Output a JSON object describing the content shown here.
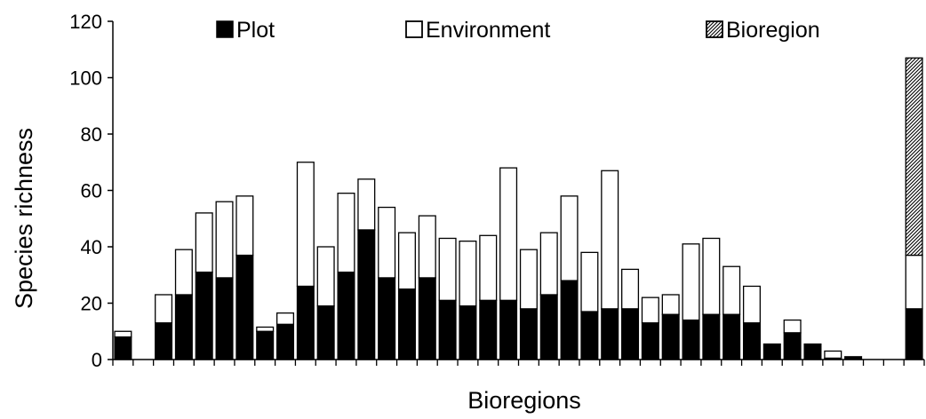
{
  "chart_data": {
    "type": "bar",
    "stacked": true,
    "title": "",
    "xlabel": "Bioregions",
    "ylabel": "Species richness",
    "ylim": [
      0,
      120
    ],
    "yticks": [
      0,
      20,
      40,
      60,
      80,
      100,
      120
    ],
    "grid": false,
    "legend_position": "top",
    "legend": [
      {
        "name": "Plot",
        "fill": "solid"
      },
      {
        "name": "Environment",
        "fill": "white"
      },
      {
        "name": "Bioregion",
        "fill": "hatched"
      }
    ],
    "colors": {
      "plot": "#000000",
      "environment": "#ffffff",
      "bioregion_hatch": "#000000",
      "axis": "#000000"
    },
    "bars": [
      {
        "plot": 8,
        "environment": 2,
        "bioregion": 0
      },
      {
        "plot": 0,
        "environment": 0,
        "bioregion": 0
      },
      {
        "plot": 13,
        "environment": 10,
        "bioregion": 0
      },
      {
        "plot": 23,
        "environment": 16,
        "bioregion": 0
      },
      {
        "plot": 31,
        "environment": 21,
        "bioregion": 0
      },
      {
        "plot": 29,
        "environment": 27,
        "bioregion": 0
      },
      {
        "plot": 37,
        "environment": 21,
        "bioregion": 0
      },
      {
        "plot": 10,
        "environment": 1.5,
        "bioregion": 0
      },
      {
        "plot": 12.5,
        "environment": 4,
        "bioregion": 0
      },
      {
        "plot": 26,
        "environment": 44,
        "bioregion": 0
      },
      {
        "plot": 19,
        "environment": 21,
        "bioregion": 0
      },
      {
        "plot": 31,
        "environment": 28,
        "bioregion": 0
      },
      {
        "plot": 46,
        "environment": 18,
        "bioregion": 0
      },
      {
        "plot": 29,
        "environment": 25,
        "bioregion": 0
      },
      {
        "plot": 25,
        "environment": 20,
        "bioregion": 0
      },
      {
        "plot": 29,
        "environment": 22,
        "bioregion": 0
      },
      {
        "plot": 21,
        "environment": 22,
        "bioregion": 0
      },
      {
        "plot": 19,
        "environment": 23,
        "bioregion": 0
      },
      {
        "plot": 21,
        "environment": 23,
        "bioregion": 0
      },
      {
        "plot": 21,
        "environment": 47,
        "bioregion": 0
      },
      {
        "plot": 18,
        "environment": 21,
        "bioregion": 0
      },
      {
        "plot": 23,
        "environment": 22,
        "bioregion": 0
      },
      {
        "plot": 28,
        "environment": 30,
        "bioregion": 0
      },
      {
        "plot": 17,
        "environment": 21,
        "bioregion": 0
      },
      {
        "plot": 18,
        "environment": 49,
        "bioregion": 0
      },
      {
        "plot": 18,
        "environment": 14,
        "bioregion": 0
      },
      {
        "plot": 13,
        "environment": 9,
        "bioregion": 0
      },
      {
        "plot": 16,
        "environment": 7,
        "bioregion": 0
      },
      {
        "plot": 14,
        "environment": 27,
        "bioregion": 0
      },
      {
        "plot": 16,
        "environment": 27,
        "bioregion": 0
      },
      {
        "plot": 16,
        "environment": 17,
        "bioregion": 0
      },
      {
        "plot": 13,
        "environment": 13,
        "bioregion": 0
      },
      {
        "plot": 5.5,
        "environment": 0,
        "bioregion": 0
      },
      {
        "plot": 9.5,
        "environment": 4.5,
        "bioregion": 0
      },
      {
        "plot": 5.5,
        "environment": 0,
        "bioregion": 0
      },
      {
        "plot": 0.5,
        "environment": 2.5,
        "bioregion": 0
      },
      {
        "plot": 1,
        "environment": 0,
        "bioregion": 0
      },
      {
        "plot": 0,
        "environment": 0,
        "bioregion": 0
      },
      {
        "plot": 0,
        "environment": 0,
        "bioregion": 0
      },
      {
        "plot": 18,
        "environment": 19,
        "bioregion": 70
      }
    ]
  }
}
